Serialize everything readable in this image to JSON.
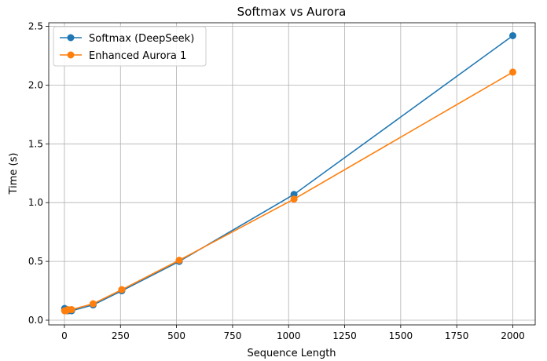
{
  "chart_data": {
    "type": "line",
    "title": "Softmax vs Aurora",
    "xlabel": "Sequence Length",
    "ylabel": "Time (s)",
    "xlim": [
      -70,
      2100
    ],
    "ylim": [
      -0.04,
      2.53
    ],
    "xticks": [
      0,
      250,
      500,
      750,
      1000,
      1250,
      1500,
      1750,
      2000
    ],
    "yticks": [
      0.0,
      0.5,
      1.0,
      1.5,
      2.0,
      2.5
    ],
    "xtick_labels": [
      "0",
      "250",
      "500",
      "750",
      "1000",
      "1250",
      "1500",
      "1750",
      "2000"
    ],
    "ytick_labels": [
      "0.0",
      "0.5",
      "1.0",
      "1.5",
      "2.0",
      "2.5"
    ],
    "grid": true,
    "legend_position": "top-left",
    "series": [
      {
        "name": "Softmax (DeepSeek)",
        "color": "#1f77b4",
        "marker": "circle",
        "points": [
          [
            1,
            0.1
          ],
          [
            8,
            0.08
          ],
          [
            16,
            0.08
          ],
          [
            32,
            0.08
          ],
          [
            128,
            0.13
          ],
          [
            256,
            0.25
          ],
          [
            512,
            0.5
          ],
          [
            1024,
            1.07
          ],
          [
            2000,
            2.42
          ]
        ]
      },
      {
        "name": "Enhanced Aurora 1",
        "color": "#ff7f0e",
        "marker": "circle",
        "points": [
          [
            1,
            0.08
          ],
          [
            8,
            0.08
          ],
          [
            16,
            0.09
          ],
          [
            32,
            0.09
          ],
          [
            128,
            0.14
          ],
          [
            256,
            0.26
          ],
          [
            512,
            0.51
          ],
          [
            1024,
            1.03
          ],
          [
            2000,
            2.11
          ]
        ]
      }
    ]
  }
}
